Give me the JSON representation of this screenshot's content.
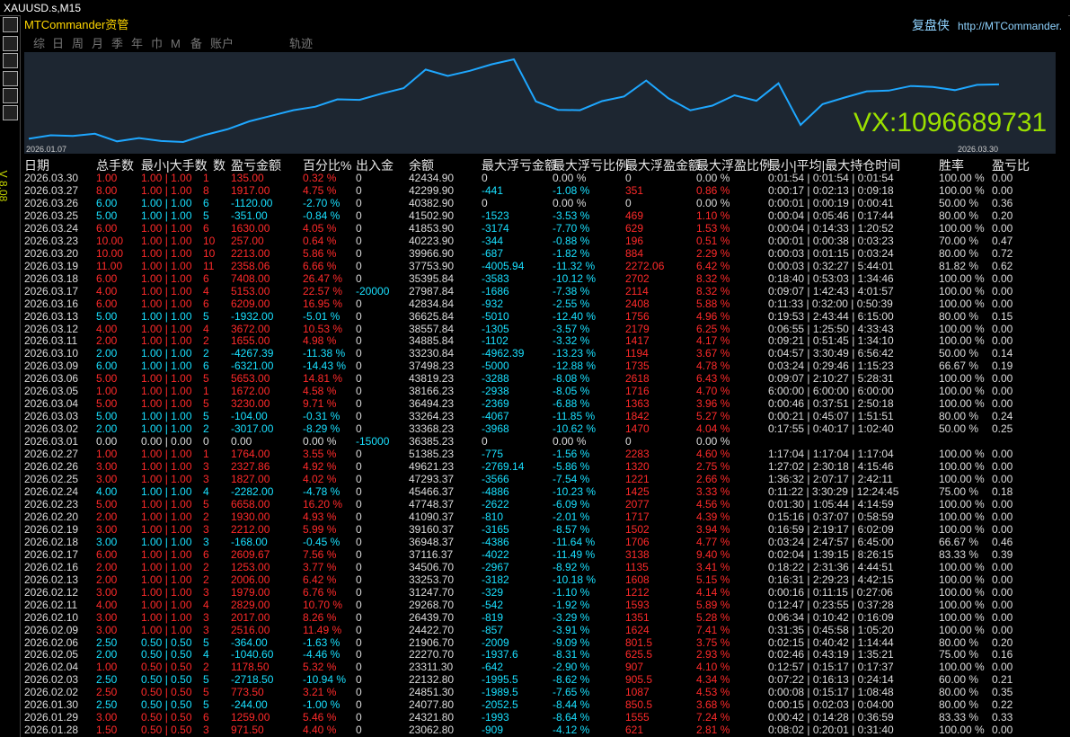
{
  "window": {
    "title": "XAUUSD.s,M15",
    "app": "MTCommander资管",
    "brand": "复盘侠",
    "url": "http://MTCommander.",
    "side_label": "V 8.08"
  },
  "toolbar": [
    "综",
    "日",
    "周",
    "月",
    "季",
    "年",
    "巾",
    "M",
    "备",
    "账户",
    "轨迹"
  ],
  "chart": {
    "start_label": "2026.01.07",
    "end_label": "2026.03.30",
    "watermark": "VX:1096689731"
  },
  "table": {
    "headers": [
      "日期",
      "总手数",
      "最小|大手数",
      "数",
      "盈亏金额",
      "百分比%",
      "出入金",
      "余额",
      "最大浮亏金额",
      "最大浮亏比例",
      "最大浮盈金额",
      "最大浮盈比例",
      "最小|平均|最大持仓时间",
      "胜率",
      "盈亏比"
    ],
    "rows": [
      [
        "2026.03.30",
        "1.00",
        "1.00 | 1.00",
        "1",
        "135.00",
        "0.32 %",
        "0",
        "42434.90",
        "0",
        "0.00 %",
        "0",
        "0.00 %",
        "0:01:54 | 0:01:54 | 0:01:54",
        "100.00 %",
        "0.00"
      ],
      [
        "2026.03.27",
        "8.00",
        "1.00 | 1.00",
        "8",
        "1917.00",
        "4.75 %",
        "0",
        "42299.90",
        "-441",
        "-1.08 %",
        "351",
        "0.86 %",
        "0:00:17 | 0:02:13 | 0:09:18",
        "100.00 %",
        "0.00"
      ],
      [
        "2026.03.26",
        "6.00",
        "1.00 | 1.00",
        "6",
        "-1120.00",
        "-2.70 %",
        "0",
        "40382.90",
        "0",
        "0.00 %",
        "0",
        "0.00 %",
        "0:00:01 | 0:00:19 | 0:00:41",
        "50.00 %",
        "0.36"
      ],
      [
        "2026.03.25",
        "5.00",
        "1.00 | 1.00",
        "5",
        "-351.00",
        "-0.84 %",
        "0",
        "41502.90",
        "-1523",
        "-3.53 %",
        "469",
        "1.10 %",
        "0:00:04 | 0:05:46 | 0:17:44",
        "80.00 %",
        "0.20"
      ],
      [
        "2026.03.24",
        "6.00",
        "1.00 | 1.00",
        "6",
        "1630.00",
        "4.05 %",
        "0",
        "41853.90",
        "-3174",
        "-7.70 %",
        "629",
        "1.53 %",
        "0:00:04 | 0:14:33 | 1:20:52",
        "100.00 %",
        "0.00"
      ],
      [
        "2026.03.23",
        "10.00",
        "1.00 | 1.00",
        "10",
        "257.00",
        "0.64 %",
        "0",
        "40223.90",
        "-344",
        "-0.88 %",
        "196",
        "0.51 %",
        "0:00:01 | 0:00:38 | 0:03:23",
        "70.00 %",
        "0.47"
      ],
      [
        "2026.03.20",
        "10.00",
        "1.00 | 1.00",
        "10",
        "2213.00",
        "5.86 %",
        "0",
        "39966.90",
        "-687",
        "-1.82 %",
        "884",
        "2.29 %",
        "0:00:03 | 0:01:15 | 0:03:24",
        "80.00 %",
        "0.72"
      ],
      [
        "2026.03.19",
        "11.00",
        "1.00 | 1.00",
        "11",
        "2358.06",
        "6.66 %",
        "0",
        "37753.90",
        "-4005.94",
        "-11.32 %",
        "2272.06",
        "6.42 %",
        "0:00:03 | 0:32:27 | 5:44:01",
        "81.82 %",
        "0.62"
      ],
      [
        "2026.03.18",
        "6.00",
        "1.00 | 1.00",
        "6",
        "7408.00",
        "26.47 %",
        "0",
        "35395.84",
        "-3583",
        "-10.12 %",
        "2702",
        "8.32 %",
        "0:18:40 | 0:53:03 | 1:34:46",
        "100.00 %",
        "0.00"
      ],
      [
        "2026.03.17",
        "4.00",
        "1.00 | 1.00",
        "4",
        "5153.00",
        "22.57 %",
        "-20000",
        "27987.84",
        "-1686",
        "-7.38 %",
        "2114",
        "8.32 %",
        "0:09:07 | 1:42:43 | 4:01:57",
        "100.00 %",
        "0.00"
      ],
      [
        "2026.03.16",
        "6.00",
        "1.00 | 1.00",
        "6",
        "6209.00",
        "16.95 %",
        "0",
        "42834.84",
        "-932",
        "-2.55 %",
        "2408",
        "5.88 %",
        "0:11:33 | 0:32:00 | 0:50:39",
        "100.00 %",
        "0.00"
      ],
      [
        "2026.03.13",
        "5.00",
        "1.00 | 1.00",
        "5",
        "-1932.00",
        "-5.01 %",
        "0",
        "36625.84",
        "-5010",
        "-12.40 %",
        "1756",
        "4.96 %",
        "0:19:53 | 2:43:44 | 6:15:00",
        "80.00 %",
        "0.15"
      ],
      [
        "2026.03.12",
        "4.00",
        "1.00 | 1.00",
        "4",
        "3672.00",
        "10.53 %",
        "0",
        "38557.84",
        "-1305",
        "-3.57 %",
        "2179",
        "6.25 %",
        "0:06:55 | 1:25:50 | 4:33:43",
        "100.00 %",
        "0.00"
      ],
      [
        "2026.03.11",
        "2.00",
        "1.00 | 1.00",
        "2",
        "1655.00",
        "4.98 %",
        "0",
        "34885.84",
        "-1102",
        "-3.32 %",
        "1417",
        "4.17 %",
        "0:09:21 | 0:51:45 | 1:34:10",
        "100.00 %",
        "0.00"
      ],
      [
        "2026.03.10",
        "2.00",
        "1.00 | 1.00",
        "2",
        "-4267.39",
        "-11.38 %",
        "0",
        "33230.84",
        "-4962.39",
        "-13.23 %",
        "1194",
        "3.67 %",
        "0:04:57 | 3:30:49 | 6:56:42",
        "50.00 %",
        "0.14"
      ],
      [
        "2026.03.09",
        "6.00",
        "1.00 | 1.00",
        "6",
        "-6321.00",
        "-14.43 %",
        "0",
        "37498.23",
        "-5000",
        "-12.88 %",
        "1735",
        "4.78 %",
        "0:03:24 | 0:29:46 | 1:15:23",
        "66.67 %",
        "0.19"
      ],
      [
        "2026.03.06",
        "5.00",
        "1.00 | 1.00",
        "5",
        "5653.00",
        "14.81 %",
        "0",
        "43819.23",
        "-3288",
        "-8.08 %",
        "2618",
        "6.43 %",
        "0:09:07 | 2:10:27 | 5:28:31",
        "100.00 %",
        "0.00"
      ],
      [
        "2026.03.05",
        "1.00",
        "1.00 | 1.00",
        "1",
        "1672.00",
        "4.58 %",
        "0",
        "38166.23",
        "-2938",
        "-8.05 %",
        "1716",
        "4.70 %",
        "6:00:00 | 6:00:00 | 6:00:00",
        "100.00 %",
        "0.00"
      ],
      [
        "2026.03.04",
        "5.00",
        "1.00 | 1.00",
        "5",
        "3230.00",
        "9.71 %",
        "0",
        "36494.23",
        "-2369",
        "-6.88 %",
        "1363",
        "3.96 %",
        "0:00:46 | 0:37:51 | 2:50:18",
        "100.00 %",
        "0.00"
      ],
      [
        "2026.03.03",
        "5.00",
        "1.00 | 1.00",
        "5",
        "-104.00",
        "-0.31 %",
        "0",
        "33264.23",
        "-4067",
        "-11.85 %",
        "1842",
        "5.27 %",
        "0:00:21 | 0:45:07 | 1:51:51",
        "80.00 %",
        "0.24"
      ],
      [
        "2026.03.02",
        "2.00",
        "1.00 | 1.00",
        "2",
        "-3017.00",
        "-8.29 %",
        "0",
        "33368.23",
        "-3968",
        "-10.62 %",
        "1470",
        "4.04 %",
        "0:17:55 | 0:40:17 | 1:02:40",
        "50.00 %",
        "0.25"
      ],
      [
        "2026.03.01",
        "0.00",
        "0.00 | 0.00",
        "0",
        "0.00",
        "0.00 %",
        "-15000",
        "36385.23",
        "0",
        "0.00 %",
        "0",
        "0.00 %",
        null,
        null,
        null
      ],
      [
        "2026.02.27",
        "1.00",
        "1.00 | 1.00",
        "1",
        "1764.00",
        "3.55 %",
        "0",
        "51385.23",
        "-775",
        "-1.56 %",
        "2283",
        "4.60 %",
        "1:17:04 | 1:17:04 | 1:17:04",
        "100.00 %",
        "0.00"
      ],
      [
        "2026.02.26",
        "3.00",
        "1.00 | 1.00",
        "3",
        "2327.86",
        "4.92 %",
        "0",
        "49621.23",
        "-2769.14",
        "-5.86 %",
        "1320",
        "2.75 %",
        "1:27:02 | 2:30:18 | 4:15:46",
        "100.00 %",
        "0.00"
      ],
      [
        "2026.02.25",
        "3.00",
        "1.00 | 1.00",
        "3",
        "1827.00",
        "4.02 %",
        "0",
        "47293.37",
        "-3566",
        "-7.54 %",
        "1221",
        "2.66 %",
        "1:36:32 | 2:07:17 | 2:42:11",
        "100.00 %",
        "0.00"
      ],
      [
        "2026.02.24",
        "4.00",
        "1.00 | 1.00",
        "4",
        "-2282.00",
        "-4.78 %",
        "0",
        "45466.37",
        "-4886",
        "-10.23 %",
        "1425",
        "3.33 %",
        "0:11:22 | 3:30:29 | 12:24:45",
        "75.00 %",
        "0.18"
      ],
      [
        "2026.02.23",
        "5.00",
        "1.00 | 1.00",
        "5",
        "6658.00",
        "16.20 %",
        "0",
        "47748.37",
        "-2622",
        "-6.09 %",
        "2077",
        "4.56 %",
        "0:01:30 | 1:05:44 | 4:14:59",
        "100.00 %",
        "0.00"
      ],
      [
        "2026.02.20",
        "2.00",
        "1.00 | 1.00",
        "2",
        "1930.00",
        "4.93 %",
        "0",
        "41090.37",
        "-810",
        "-2.01 %",
        "1717",
        "4.39 %",
        "0:15:16 | 0:37:07 | 0:58:59",
        "100.00 %",
        "0.00"
      ],
      [
        "2026.02.19",
        "3.00",
        "1.00 | 1.00",
        "3",
        "2212.00",
        "5.99 %",
        "0",
        "39160.37",
        "-3165",
        "-8.57 %",
        "1502",
        "3.94 %",
        "0:16:59 | 2:19:17 | 6:02:09",
        "100.00 %",
        "0.00"
      ],
      [
        "2026.02.18",
        "3.00",
        "1.00 | 1.00",
        "3",
        "-168.00",
        "-0.45 %",
        "0",
        "36948.37",
        "-4386",
        "-11.64 %",
        "1706",
        "4.77 %",
        "0:03:24 | 2:47:57 | 6:45:00",
        "66.67 %",
        "0.46"
      ],
      [
        "2026.02.17",
        "6.00",
        "1.00 | 1.00",
        "6",
        "2609.67",
        "7.56 %",
        "0",
        "37116.37",
        "-4022",
        "-11.49 %",
        "3138",
        "9.40 %",
        "0:02:04 | 1:39:15 | 8:26:15",
        "83.33 %",
        "0.39"
      ],
      [
        "2026.02.16",
        "2.00",
        "1.00 | 1.00",
        "2",
        "1253.00",
        "3.77 %",
        "0",
        "34506.70",
        "-2967",
        "-8.92 %",
        "1135",
        "3.41 %",
        "0:18:22 | 2:31:36 | 4:44:51",
        "100.00 %",
        "0.00"
      ],
      [
        "2026.02.13",
        "2.00",
        "1.00 | 1.00",
        "2",
        "2006.00",
        "6.42 %",
        "0",
        "33253.70",
        "-3182",
        "-10.18 %",
        "1608",
        "5.15 %",
        "0:16:31 | 2:29:23 | 4:42:15",
        "100.00 %",
        "0.00"
      ],
      [
        "2026.02.12",
        "3.00",
        "1.00 | 1.00",
        "3",
        "1979.00",
        "6.76 %",
        "0",
        "31247.70",
        "-329",
        "-1.10 %",
        "1212",
        "4.14 %",
        "0:00:16 | 0:11:15 | 0:27:06",
        "100.00 %",
        "0.00"
      ],
      [
        "2026.02.11",
        "4.00",
        "1.00 | 1.00",
        "4",
        "2829.00",
        "10.70 %",
        "0",
        "29268.70",
        "-542",
        "-1.92 %",
        "1593",
        "5.89 %",
        "0:12:47 | 0:23:55 | 0:37:28",
        "100.00 %",
        "0.00"
      ],
      [
        "2026.02.10",
        "3.00",
        "1.00 | 1.00",
        "3",
        "2017.00",
        "8.26 %",
        "0",
        "26439.70",
        "-819",
        "-3.29 %",
        "1351",
        "5.28 %",
        "0:06:34 | 0:10:42 | 0:16:09",
        "100.00 %",
        "0.00"
      ],
      [
        "2026.02.09",
        "3.00",
        "1.00 | 1.00",
        "3",
        "2516.00",
        "11.49 %",
        "0",
        "24422.70",
        "-857",
        "-3.91 %",
        "1624",
        "7.41 %",
        "0:31:35 | 0:45:58 | 1:05:20",
        "100.00 %",
        "0.00"
      ],
      [
        "2026.02.06",
        "2.50",
        "0.50 | 0.50",
        "5",
        "-364.00",
        "-1.63 %",
        "0",
        "21906.70",
        "-2009",
        "-9.09 %",
        "801.5",
        "3.75 %",
        "0:02:15 | 0:40:42 | 1:14:44",
        "80.00 %",
        "0.20"
      ],
      [
        "2026.02.05",
        "2.00",
        "0.50 | 0.50",
        "4",
        "-1040.60",
        "-4.46 %",
        "0",
        "22270.70",
        "-1937.6",
        "-8.31 %",
        "625.5",
        "2.93 %",
        "0:02:46 | 0:43:19 | 1:35:21",
        "75.00 %",
        "0.16"
      ],
      [
        "2026.02.04",
        "1.00",
        "0.50 | 0.50",
        "2",
        "1178.50",
        "5.32 %",
        "0",
        "23311.30",
        "-642",
        "-2.90 %",
        "907",
        "4.10 %",
        "0:12:57 | 0:15:17 | 0:17:37",
        "100.00 %",
        "0.00"
      ],
      [
        "2026.02.03",
        "2.50",
        "0.50 | 0.50",
        "5",
        "-2718.50",
        "-10.94 %",
        "0",
        "22132.80",
        "-1995.5",
        "-8.62 %",
        "905.5",
        "4.34 %",
        "0:07:22 | 0:16:13 | 0:24:14",
        "60.00 %",
        "0.21"
      ],
      [
        "2026.02.02",
        "2.50",
        "0.50 | 0.50",
        "5",
        "773.50",
        "3.21 %",
        "0",
        "24851.30",
        "-1989.5",
        "-7.65 %",
        "1087",
        "4.53 %",
        "0:00:08 | 0:15:17 | 1:08:48",
        "80.00 %",
        "0.35"
      ],
      [
        "2026.01.30",
        "2.50",
        "0.50 | 0.50",
        "5",
        "-244.00",
        "-1.00 %",
        "0",
        "24077.80",
        "-2052.5",
        "-8.44 %",
        "850.5",
        "3.68 %",
        "0:00:15 | 0:02:03 | 0:04:00",
        "80.00 %",
        "0.22"
      ],
      [
        "2026.01.29",
        "3.00",
        "0.50 | 0.50",
        "6",
        "1259.00",
        "5.46 %",
        "0",
        "24321.80",
        "-1993",
        "-8.64 %",
        "1555",
        "7.24 %",
        "0:00:42 | 0:14:28 | 0:36:59",
        "83.33 %",
        "0.33"
      ],
      [
        "2026.01.28",
        "1.50",
        "0.50 | 0.50",
        "3",
        "971.50",
        "4.40 %",
        "0",
        "23062.80",
        "-909",
        "-4.12 %",
        "621",
        "2.81 %",
        "0:08:02 | 0:20:01 | 0:31:40",
        "100.00 %",
        "0.00"
      ]
    ]
  }
}
